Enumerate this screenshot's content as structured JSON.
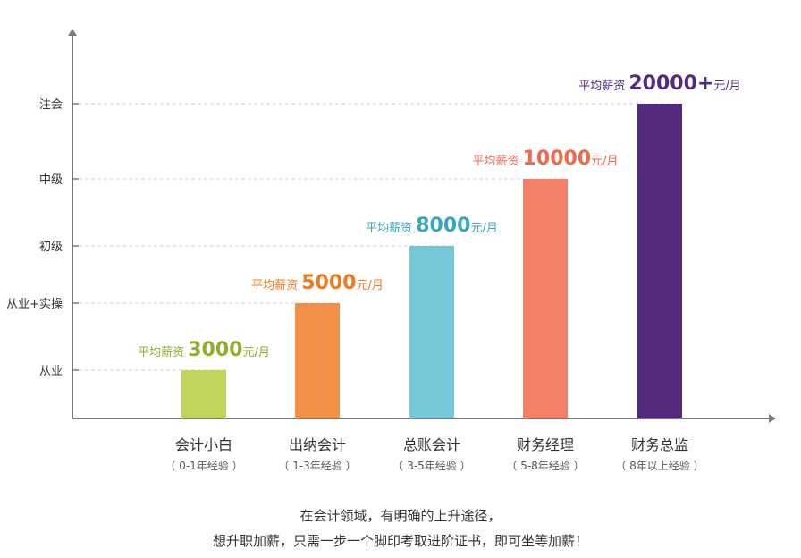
{
  "colors": {
    "axis": "#7a7a7a",
    "grid": "#cfcfcf",
    "text": "#333333",
    "subtext": "#555555"
  },
  "chart_data": {
    "type": "bar",
    "y_levels": [
      "从业",
      "从业+实操",
      "初级",
      "中级",
      "注会"
    ],
    "categories": [
      "会计小白",
      "出纳会计",
      "总账会计",
      "财务经理",
      "财务总监"
    ],
    "subtitles": [
      "（ 0-1年经验 ）",
      "（ 1-3年经验 ）",
      "（ 3-5年经验 ）",
      "（ 5-8年经验 ）",
      "（ 8年以上经验 ）"
    ],
    "values": [
      3000,
      5000,
      8000,
      10000,
      20000
    ],
    "bar_levels": [
      "从业",
      "从业+实操",
      "初级",
      "中级",
      "注会"
    ],
    "label_prefix": "平均薪资",
    "label_values": [
      "3000",
      "5000",
      "8000",
      "10000",
      "20000+"
    ],
    "label_unit": "元/月",
    "colors": [
      "#c2d55a",
      "#f29048",
      "#74c8d8",
      "#f27f66",
      "#542a7f"
    ],
    "label_colors": [
      "#8faf2c",
      "#ef7a26",
      "#3aa6bd",
      "#ee6a4f",
      "#542a7f"
    ]
  },
  "caption": {
    "line1": "在会计领域，有明确的上升途径，",
    "line2": "想升职加薪，只需一步一个脚印考取进阶证书，即可坐等加薪！"
  }
}
